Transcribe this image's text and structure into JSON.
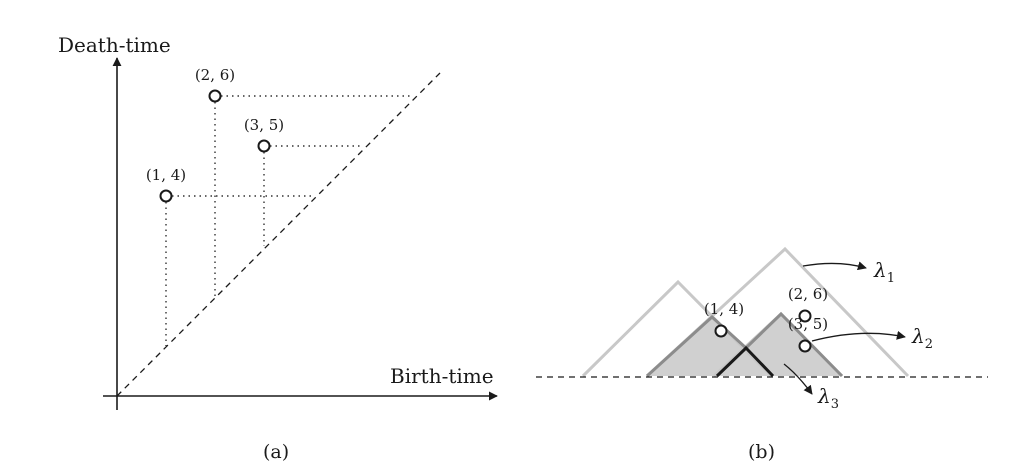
{
  "panel_a": {
    "y_axis_title": "Death-time",
    "x_axis_title": "Birth-time",
    "caption": "(a)",
    "points": [
      {
        "label": "(1, 4)",
        "birth": 1,
        "death": 4
      },
      {
        "label": "(2, 6)",
        "birth": 2,
        "death": 6
      },
      {
        "label": "(3, 5)",
        "birth": 3,
        "death": 5
      }
    ]
  },
  "panel_b": {
    "caption": "(b)",
    "points": [
      {
        "label": "(1, 4)",
        "birth": 1,
        "death": 4
      },
      {
        "label": "(2, 6)",
        "birth": 2,
        "death": 6
      },
      {
        "label": "(3, 5)",
        "birth": 3,
        "death": 5
      }
    ],
    "landscapes": [
      {
        "symbol": "λ",
        "subscript": "1"
      },
      {
        "symbol": "λ",
        "subscript": "2"
      },
      {
        "symbol": "λ",
        "subscript": "3"
      }
    ]
  },
  "colors": {
    "ink": "#1a1a1a",
    "light_tent": "#c8c8c8",
    "shade_fill": "#d0d0d0",
    "mid_tent": "#8c8c8c"
  }
}
